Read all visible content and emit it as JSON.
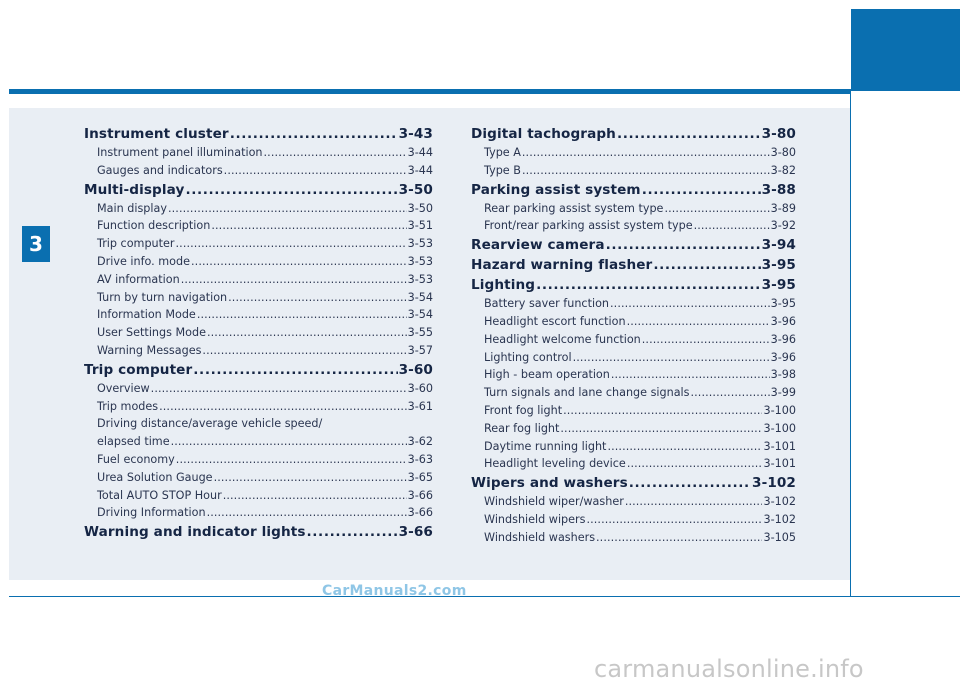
{
  "chapter": "3",
  "left_column": [
    {
      "level": "main",
      "title": "Instrument cluster",
      "page": "3-43"
    },
    {
      "level": "sub",
      "title": "Instrument panel illumination",
      "page": "3-44"
    },
    {
      "level": "sub",
      "title": "Gauges and indicators",
      "page": "3-44"
    },
    {
      "level": "main",
      "title": "Multi-display",
      "page": "3-50"
    },
    {
      "level": "sub",
      "title": "Main display",
      "page": "3-50"
    },
    {
      "level": "sub",
      "title": "Function description",
      "page": "3-51"
    },
    {
      "level": "sub",
      "title": "Trip computer",
      "page": "3-53"
    },
    {
      "level": "sub",
      "title": "Drive info. mode",
      "page": "3-53"
    },
    {
      "level": "sub",
      "title": "AV information",
      "page": "3-53"
    },
    {
      "level": "sub",
      "title": "Turn by turn navigation",
      "page": "3-54"
    },
    {
      "level": "sub",
      "title": "Information Mode",
      "page": "3-54"
    },
    {
      "level": "sub",
      "title": "User Settings Mode",
      "page": "3-55"
    },
    {
      "level": "sub",
      "title": "Warning Messages",
      "page": "3-57"
    },
    {
      "level": "main",
      "title": "Trip computer",
      "page": "3-60"
    },
    {
      "level": "sub",
      "title": "Overview",
      "page": "3-60"
    },
    {
      "level": "sub",
      "title": "Trip modes",
      "page": "3-61"
    },
    {
      "level": "sub",
      "title": "Driving distance/average vehicle speed/",
      "page": ""
    },
    {
      "level": "sub",
      "title": "elapsed time",
      "page": "3-62"
    },
    {
      "level": "sub",
      "title": "Fuel economy",
      "page": "3-63"
    },
    {
      "level": "sub",
      "title": "Urea Solution Gauge",
      "page": "3-65"
    },
    {
      "level": "sub",
      "title": "Total AUTO STOP Hour",
      "page": "3-66"
    },
    {
      "level": "sub",
      "title": "Driving Information",
      "page": "3-66"
    },
    {
      "level": "main",
      "title": "Warning and indicator lights",
      "page": "3-66"
    }
  ],
  "right_column": [
    {
      "level": "main",
      "title": "Digital tachograph",
      "page": "3-80"
    },
    {
      "level": "sub",
      "title": "Type A",
      "page": "3-80"
    },
    {
      "level": "sub",
      "title": "Type B",
      "page": "3-82"
    },
    {
      "level": "main",
      "title": "Parking assist system",
      "page": "3-88"
    },
    {
      "level": "sub",
      "title": "Rear parking assist system type",
      "page": "3-89"
    },
    {
      "level": "sub",
      "title": "Front/rear parking assist system type",
      "page": "3-92"
    },
    {
      "level": "main",
      "title": "Rearview camera",
      "page": "3-94"
    },
    {
      "level": "main",
      "title": "Hazard warning flasher",
      "page": "3-95"
    },
    {
      "level": "main",
      "title": "Lighting",
      "page": "3-95"
    },
    {
      "level": "sub",
      "title": "Battery saver function",
      "page": "3-95"
    },
    {
      "level": "sub",
      "title": "Headlight escort function",
      "page": "3-96"
    },
    {
      "level": "sub",
      "title": "Headlight welcome function",
      "page": "3-96"
    },
    {
      "level": "sub",
      "title": "Lighting control",
      "page": "3-96"
    },
    {
      "level": "sub",
      "title": "High - beam operation",
      "page": "3-98"
    },
    {
      "level": "sub",
      "title": "Turn signals and lane change signals",
      "page": "3-99"
    },
    {
      "level": "sub",
      "title": "Front fog light",
      "page": "3-100"
    },
    {
      "level": "sub",
      "title": "Rear fog light",
      "page": "3-100"
    },
    {
      "level": "sub",
      "title": "Daytime running light",
      "page": "3-101"
    },
    {
      "level": "sub",
      "title": "Headlight leveling device",
      "page": "3-101"
    },
    {
      "level": "main",
      "title": "Wipers and washers",
      "page": "3-102"
    },
    {
      "level": "sub",
      "title": "Windshield wiper/washer",
      "page": "3-102"
    },
    {
      "level": "sub",
      "title": "Windshield wipers",
      "page": "3-102"
    },
    {
      "level": "sub",
      "title": "Windshield washers",
      "page": "3-105"
    }
  ],
  "watermarks": {
    "primary": "CarManuals2.com",
    "secondary": "carmanualsonline.info"
  },
  "colors": {
    "accent": "#0a6fb0",
    "panel": "#e9eef4",
    "text": "#1b2a4a"
  }
}
